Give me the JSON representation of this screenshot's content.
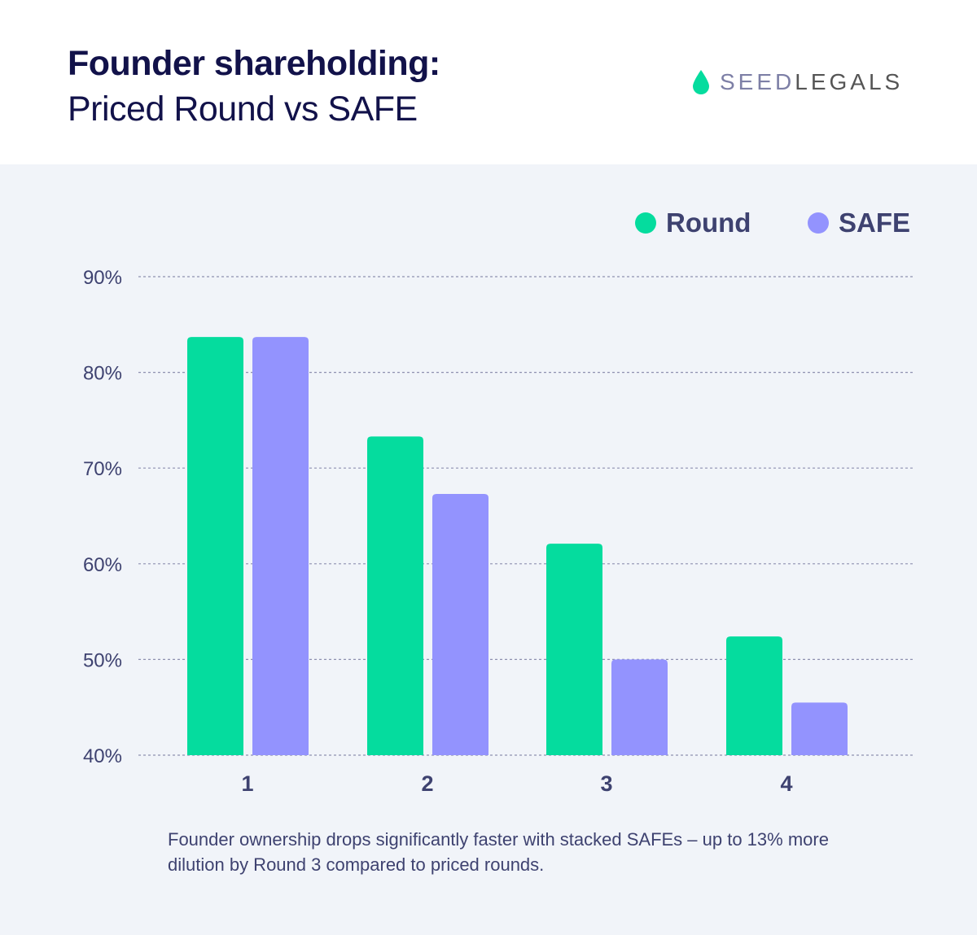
{
  "header": {
    "title_bold": "Founder shareholding:",
    "title_regular": "Priced Round vs SAFE"
  },
  "logo": {
    "part1": "SEED",
    "part2": "LEGALS",
    "icon": "droplet-icon"
  },
  "colors": {
    "round": "#05dc9e",
    "safe": "#9393fe",
    "grid": "#8e90b0",
    "text": "#3e4270"
  },
  "chart_data": {
    "type": "bar",
    "categories": [
      "1",
      "2",
      "3",
      "4"
    ],
    "series": [
      {
        "name": "Round",
        "values": [
          83.7,
          73.3,
          62.1,
          52.4
        ]
      },
      {
        "name": "SAFE",
        "values": [
          83.7,
          67.3,
          50.0,
          45.5
        ]
      }
    ],
    "ylim": [
      40,
      90
    ],
    "yticks": [
      "40%",
      "50%",
      "60%",
      "70%",
      "80%",
      "90%"
    ],
    "grid": true,
    "legend": "top-right"
  },
  "caption": "Founder ownership drops significantly faster with stacked SAFEs – up to 13% more dilution by Round 3 compared to priced rounds."
}
